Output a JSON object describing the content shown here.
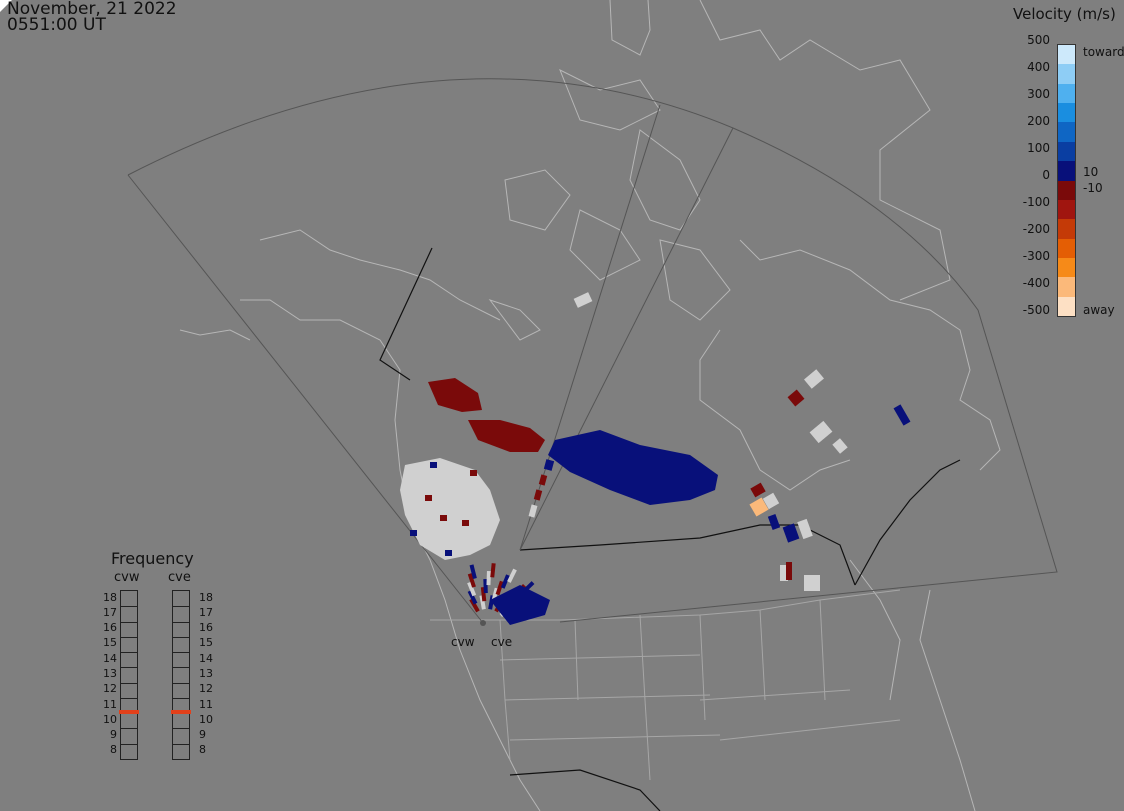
{
  "header": {
    "date": "November, 21 2022",
    "time": "0551:00 UT"
  },
  "legend": {
    "title": "Velocity (m/s)",
    "ticks": [
      "500",
      "400",
      "300",
      "200",
      "100",
      "0",
      "-100",
      "-200",
      "-300",
      "-400",
      "-500"
    ],
    "toward_label": "toward",
    "away_label": "away",
    "small_pos": "10",
    "small_neg": "-10",
    "colors": [
      "#cde9fb",
      "#8ecdf5",
      "#4fb0ef",
      "#1a8ee0",
      "#0f66c4",
      "#0a3ea2",
      "#08107a",
      "#7a0a0a",
      "#a0150f",
      "#c43a07",
      "#e45e04",
      "#f68a18",
      "#fbb97a",
      "#fde0c4"
    ]
  },
  "frequency": {
    "title": "Frequency",
    "radars": [
      {
        "name": "cvw",
        "mhz": 11
      },
      {
        "name": "cve",
        "mhz": 11
      }
    ],
    "levels": [
      "18",
      "17",
      "16",
      "15",
      "14",
      "13",
      "12",
      "11",
      "10",
      "9",
      "8"
    ],
    "marker_color": "#e2401a"
  },
  "sites": {
    "west": "cvw",
    "east": "cve"
  },
  "colors": {
    "background": "#7f7f7f",
    "coast": "#b6b6b6",
    "state_borders": "#a6a6a6",
    "fov_outline": "#555555",
    "country_border": "#111111",
    "ground_scatter": "#d0d0d0"
  }
}
